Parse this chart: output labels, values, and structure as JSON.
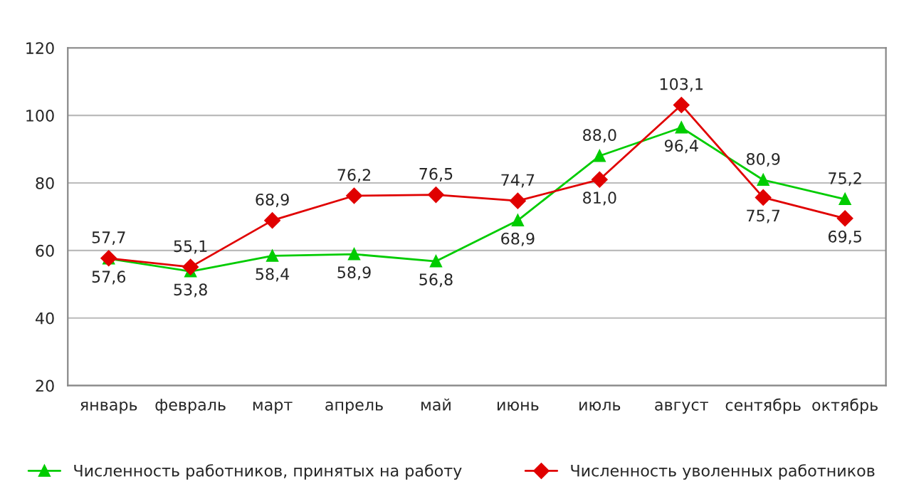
{
  "chart_data": {
    "type": "line",
    "categories": [
      "январь",
      "февраль",
      "март",
      "апрель",
      "май",
      "июнь",
      "июль",
      "август",
      "сентябрь",
      "октябрь"
    ],
    "series": [
      {
        "name": "Численность работников, принятых на работу",
        "color": "#00cc00",
        "marker": "triangle",
        "values": [
          57.6,
          53.8,
          58.4,
          58.9,
          56.8,
          68.9,
          88.0,
          96.4,
          80.9,
          75.2
        ],
        "value_labels": [
          "57,6",
          "53,8",
          "58,4",
          "58,9",
          "56,8",
          "68,9",
          "88,0",
          "96,4",
          "80,9",
          "75,2"
        ]
      },
      {
        "name": "Численность уволенных работников",
        "color": "#e00000",
        "marker": "diamond",
        "values": [
          57.7,
          55.1,
          68.9,
          76.2,
          76.5,
          74.7,
          81.0,
          103.1,
          75.7,
          69.5
        ],
        "value_labels": [
          "57,7",
          "55,1",
          "68,9",
          "76,2",
          "76,5",
          "74,7",
          "81,0",
          "103,1",
          "75,7",
          "69,5"
        ]
      }
    ],
    "ylim": [
      20,
      120
    ],
    "yticks": [
      20,
      40,
      60,
      80,
      100,
      120
    ],
    "grid": "y",
    "legend": "bottom",
    "line_style": "solid"
  }
}
